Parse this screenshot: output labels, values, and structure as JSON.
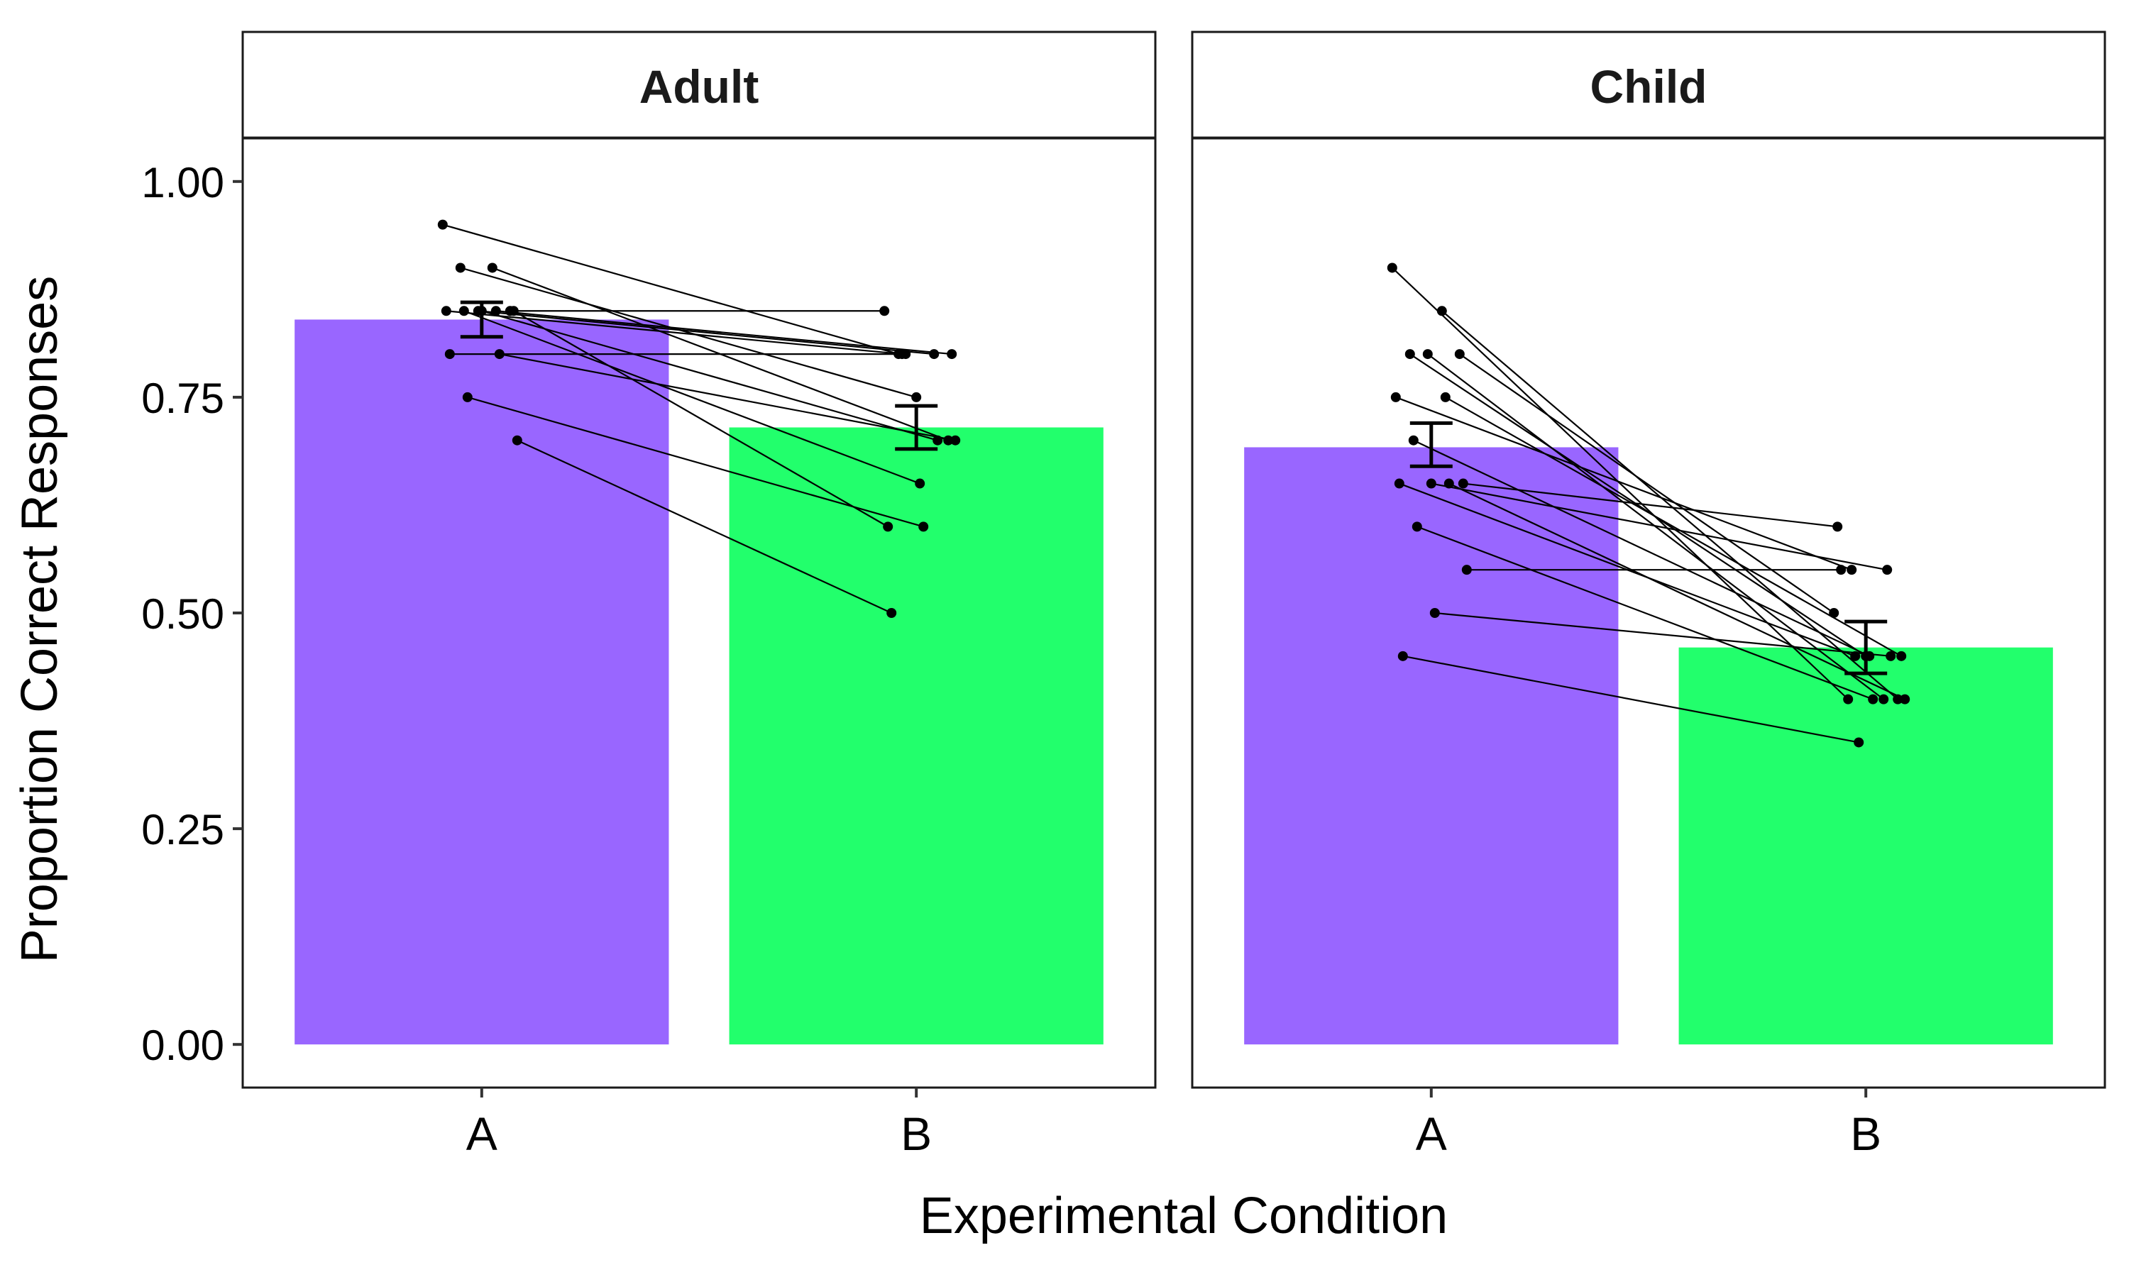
{
  "chart_data": {
    "type": "bar",
    "xlabel": "Experimental Condition",
    "ylabel": "Proportion Correct Responses",
    "ylim": [
      -0.05,
      1.05
    ],
    "yticks": [
      0.0,
      0.25,
      0.5,
      0.75,
      1.0
    ],
    "ytick_labels": [
      "0.00",
      "0.25",
      "0.50",
      "0.75",
      "1.00"
    ],
    "categories": [
      "A",
      "B"
    ],
    "bar_colors": [
      "#9966FF",
      "#22FF6C"
    ],
    "grid": false,
    "panels": [
      {
        "name": "Adult",
        "bars": [
          0.84,
          0.715
        ],
        "errors": [
          [
            0.82,
            0.86
          ],
          [
            0.69,
            0.74
          ]
        ],
        "pairs": [
          [
            0.95,
            0.8
          ],
          [
            0.9,
            0.7
          ],
          [
            0.9,
            0.75
          ],
          [
            0.85,
            0.85
          ],
          [
            0.85,
            0.8
          ],
          [
            0.85,
            0.8
          ],
          [
            0.85,
            0.8
          ],
          [
            0.85,
            0.65
          ],
          [
            0.85,
            0.6
          ],
          [
            0.85,
            0.7
          ],
          [
            0.8,
            0.8
          ],
          [
            0.8,
            0.7
          ],
          [
            0.75,
            0.6
          ],
          [
            0.7,
            0.5
          ]
        ]
      },
      {
        "name": "Child",
        "bars": [
          0.692,
          0.46
        ],
        "errors": [
          [
            0.67,
            0.72
          ],
          [
            0.43,
            0.49
          ]
        ],
        "pairs": [
          [
            0.9,
            0.4
          ],
          [
            0.85,
            0.4
          ],
          [
            0.8,
            0.45
          ],
          [
            0.8,
            0.5
          ],
          [
            0.8,
            0.4
          ],
          [
            0.75,
            0.55
          ],
          [
            0.75,
            0.45
          ],
          [
            0.7,
            0.45
          ],
          [
            0.65,
            0.6
          ],
          [
            0.65,
            0.55
          ],
          [
            0.65,
            0.45
          ],
          [
            0.65,
            0.4
          ],
          [
            0.6,
            0.4
          ],
          [
            0.55,
            0.55
          ],
          [
            0.5,
            0.45
          ],
          [
            0.45,
            0.35
          ]
        ]
      }
    ]
  }
}
